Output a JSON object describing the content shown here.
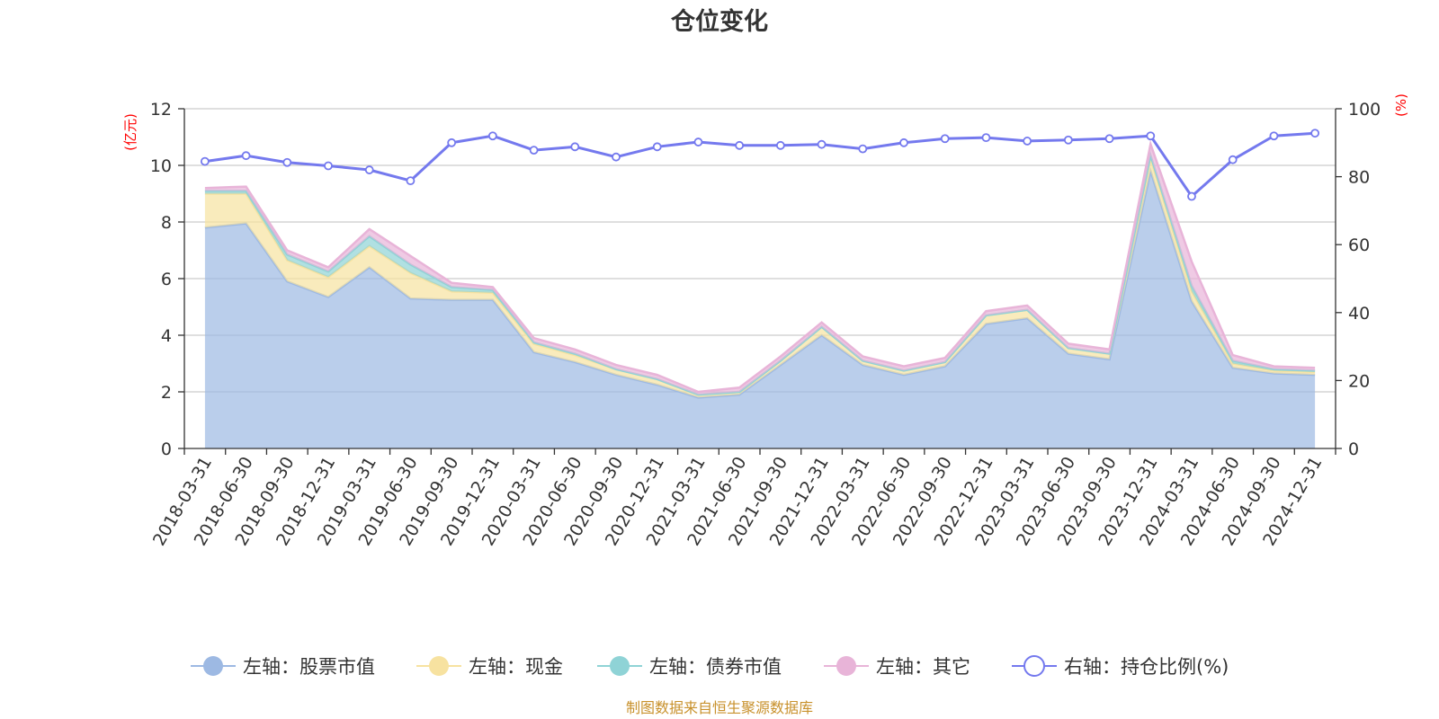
{
  "chart_data": {
    "type": "area",
    "title": "仓位变化",
    "x": [
      "2018-03-31",
      "2018-06-30",
      "2018-09-30",
      "2018-12-31",
      "2019-03-31",
      "2019-06-30",
      "2019-09-30",
      "2019-12-31",
      "2020-03-31",
      "2020-06-30",
      "2020-09-30",
      "2020-12-31",
      "2021-03-31",
      "2021-06-30",
      "2021-09-30",
      "2021-12-31",
      "2022-03-31",
      "2022-06-30",
      "2022-09-30",
      "2022-12-31",
      "2023-03-31",
      "2023-06-30",
      "2023-09-30",
      "2023-12-31",
      "2024-03-31",
      "2024-06-30",
      "2024-09-30",
      "2024-12-31"
    ],
    "left_axis": {
      "unit": "(亿元)",
      "ylim": [
        0,
        12
      ],
      "ticks": [
        "0",
        "2",
        "4",
        "6",
        "8",
        "10",
        "12"
      ]
    },
    "right_axis": {
      "unit": "(%)",
      "ylim": [
        0,
        100
      ],
      "ticks": [
        "0",
        "20",
        "40",
        "60",
        "80",
        "100"
      ]
    },
    "series": [
      {
        "name": "左轴：股票市值",
        "axis": "left",
        "stacked": true,
        "color": "#9db9e3",
        "values": [
          7.8,
          7.95,
          5.9,
          5.35,
          6.4,
          5.3,
          5.25,
          5.25,
          3.4,
          3.05,
          2.6,
          2.25,
          1.8,
          1.9,
          2.95,
          4.0,
          2.95,
          2.6,
          2.9,
          4.4,
          4.6,
          3.35,
          3.15,
          9.8,
          5.2,
          2.85,
          2.65,
          2.6
        ]
      },
      {
        "name": "左轴：现金",
        "axis": "left",
        "stacked": true,
        "color": "#f7e2a0",
        "values": [
          1.2,
          1.05,
          0.75,
          0.7,
          0.75,
          0.9,
          0.3,
          0.25,
          0.3,
          0.25,
          0.2,
          0.2,
          0.1,
          0.1,
          0.15,
          0.3,
          0.15,
          0.15,
          0.15,
          0.3,
          0.3,
          0.2,
          0.2,
          0.45,
          0.35,
          0.15,
          0.1,
          0.1
        ]
      },
      {
        "name": "左轴：债券市值",
        "axis": "left",
        "stacked": true,
        "color": "#8fd3d6",
        "values": [
          0.1,
          0.1,
          0.2,
          0.2,
          0.35,
          0.3,
          0.15,
          0.1,
          0.05,
          0.05,
          0,
          0,
          0,
          0,
          0,
          0,
          0,
          0,
          0,
          0,
          0,
          0,
          0,
          0.1,
          0.2,
          0.1,
          0.05,
          0.05
        ]
      },
      {
        "name": "左轴：其它",
        "axis": "left",
        "stacked": true,
        "color": "#e8b4d8",
        "values": [
          0.1,
          0.15,
          0.15,
          0.15,
          0.25,
          0.3,
          0.15,
          0.1,
          0.15,
          0.15,
          0.15,
          0.15,
          0.1,
          0.15,
          0.15,
          0.15,
          0.15,
          0.15,
          0.15,
          0.15,
          0.15,
          0.15,
          0.15,
          0.4,
          0.85,
          0.2,
          0.1,
          0.1
        ]
      },
      {
        "name": "右轴：持仓比例(%)",
        "axis": "right",
        "type": "line",
        "color": "#7479ee",
        "values": [
          84.5,
          86.2,
          84.2,
          83.2,
          82.0,
          78.8,
          90.0,
          92.0,
          87.8,
          88.8,
          85.8,
          88.8,
          90.2,
          89.2,
          89.2,
          89.5,
          88.2,
          90.0,
          91.2,
          91.5,
          90.5,
          90.8,
          91.2,
          92.0,
          74.2,
          85.0,
          92.0,
          92.8
        ]
      }
    ],
    "grid": true,
    "legend_position": "bottom"
  },
  "source_note": "制图数据来自恒生聚源数据库"
}
